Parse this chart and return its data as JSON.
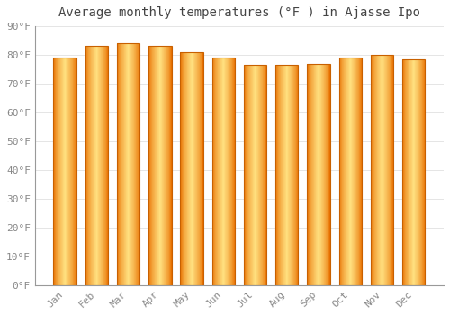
{
  "title": "Average monthly temperatures (°F ) in Ajasse Ipo",
  "months": [
    "Jan",
    "Feb",
    "Mar",
    "Apr",
    "May",
    "Jun",
    "Jul",
    "Aug",
    "Sep",
    "Oct",
    "Nov",
    "Dec"
  ],
  "values": [
    79,
    83,
    84,
    83,
    81,
    79,
    76.5,
    76.5,
    77,
    79,
    80,
    78.5
  ],
  "ylim": [
    0,
    90
  ],
  "yticks": [
    0,
    10,
    20,
    30,
    40,
    50,
    60,
    70,
    80,
    90
  ],
  "ytick_labels": [
    "0°F",
    "10°F",
    "20°F",
    "30°F",
    "40°F",
    "50°F",
    "60°F",
    "70°F",
    "80°F",
    "90°F"
  ],
  "bar_color_center": "#FFE080",
  "bar_color_edge": "#E87000",
  "bar_edge_color": "#C86000",
  "background_color": "#FFFFFF",
  "grid_color": "#E0E0E0",
  "title_fontsize": 10,
  "tick_fontsize": 8,
  "title_color": "#444444",
  "tick_color": "#888888",
  "font_family": "monospace"
}
